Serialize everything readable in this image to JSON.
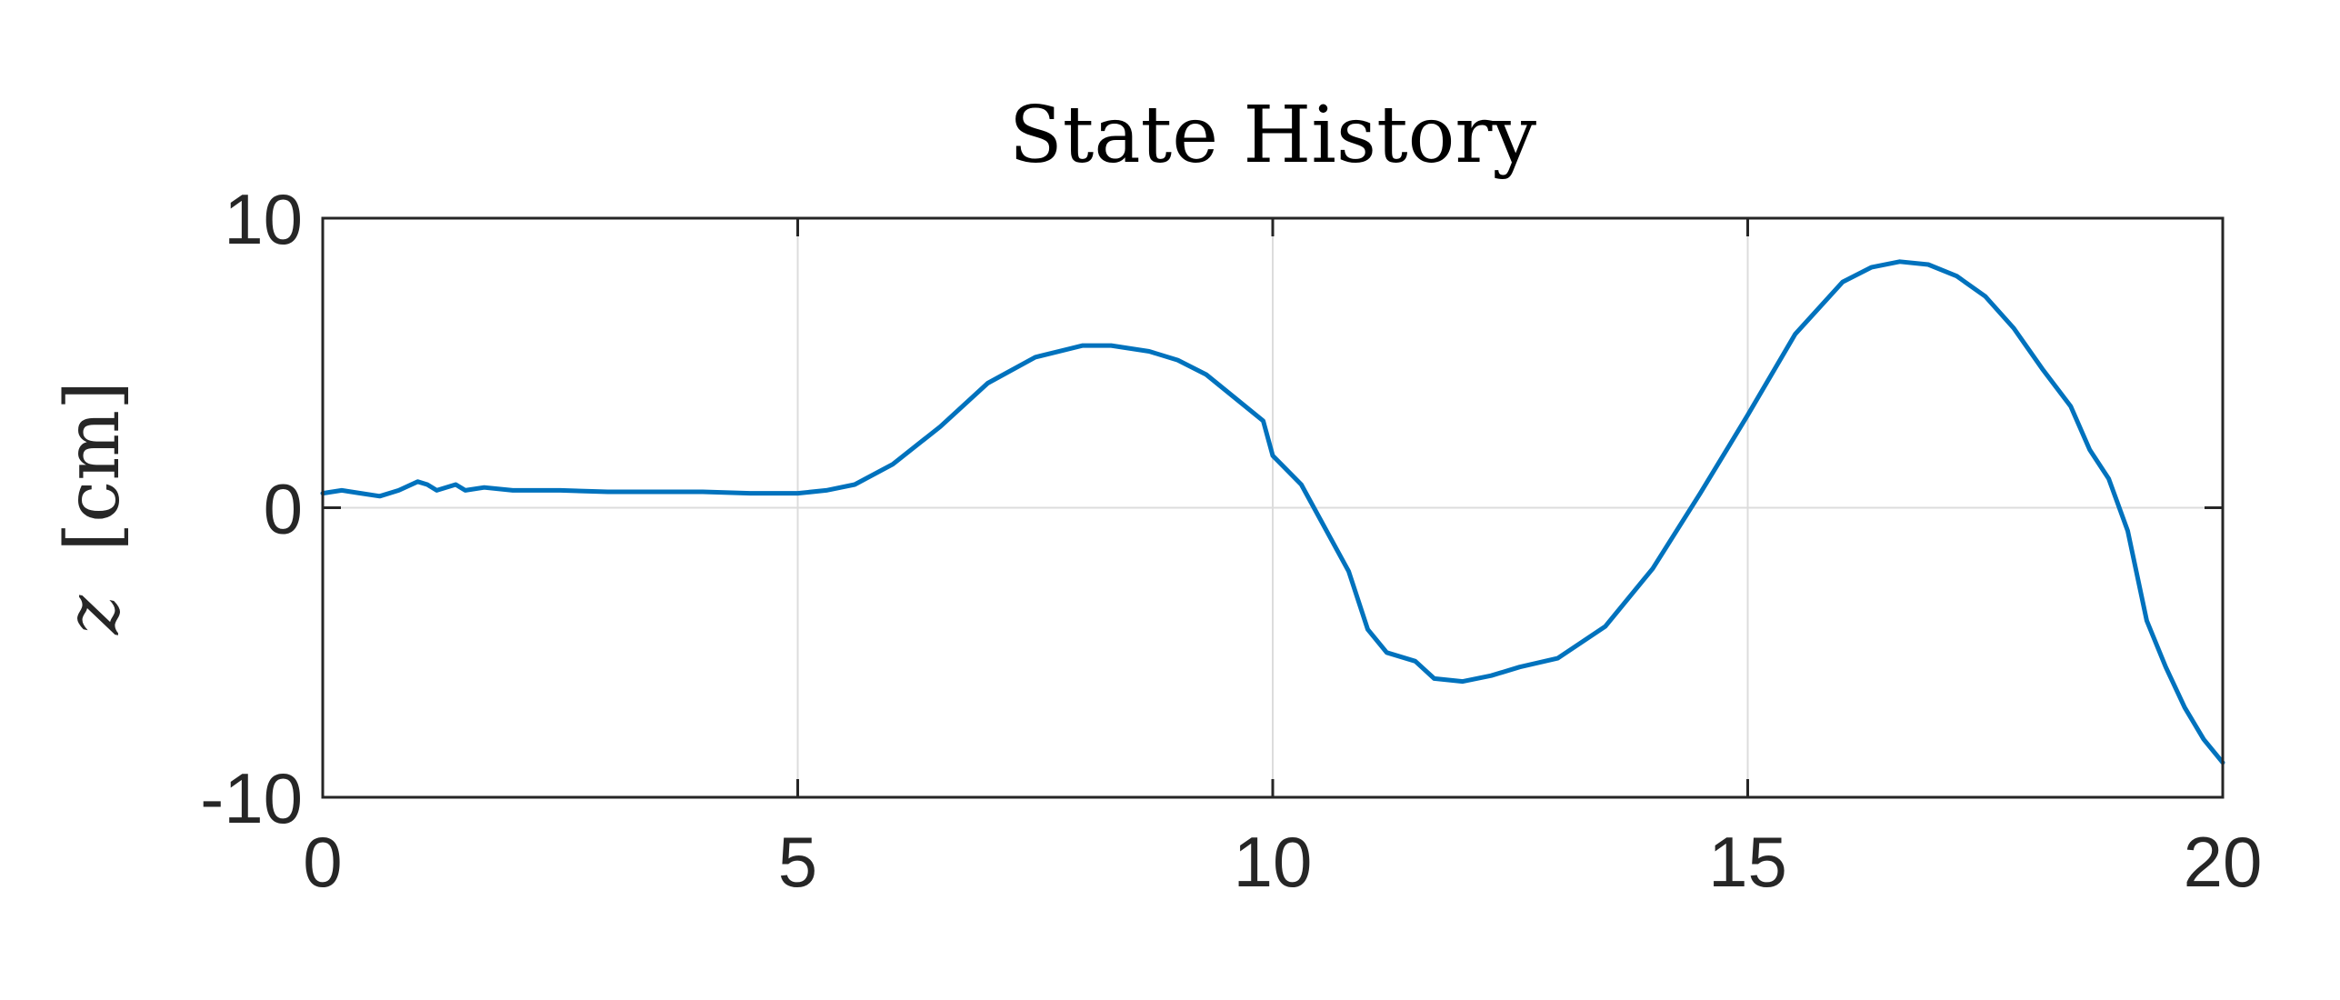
{
  "chart_data": {
    "type": "line",
    "title": "State History",
    "xlabel": "",
    "ylabel_var": "z",
    "ylabel_unit": "[cm]",
    "xlim": [
      0,
      20
    ],
    "ylim": [
      -10,
      10
    ],
    "x_ticks": [
      0,
      5,
      10,
      15,
      20
    ],
    "y_ticks": [
      -10,
      0,
      10
    ],
    "x_tick_labels": [
      "0",
      "5",
      "10",
      "15",
      "20"
    ],
    "y_tick_labels": [
      "-10",
      "0",
      "10"
    ],
    "grid": true,
    "line_color": "#0072BD",
    "series": [
      {
        "x": [
          0,
          0.2,
          0.4,
          0.6,
          0.8,
          1.0,
          1.1,
          1.2,
          1.4,
          1.5,
          1.7,
          2.0,
          2.5,
          3.0,
          3.5,
          4.0,
          4.5,
          5.0,
          5.3,
          5.6,
          6.0,
          6.5,
          7.0,
          7.5,
          8.0,
          8.3,
          8.7,
          9.0,
          9.3,
          9.6,
          9.9,
          10.0,
          10.3,
          10.6,
          10.8,
          11.0,
          11.2,
          11.5,
          11.7,
          12.0,
          12.3,
          12.6,
          13.0,
          13.5,
          14.0,
          14.5,
          15.0,
          15.5,
          16.0,
          16.3,
          16.6,
          16.9,
          17.2,
          17.5,
          17.8,
          18.1,
          18.4,
          18.6,
          18.8,
          19.0,
          19.2,
          19.4,
          19.6,
          19.8,
          20.0
        ],
        "y": [
          0.5,
          0.6,
          0.5,
          0.4,
          0.6,
          0.9,
          0.8,
          0.6,
          0.8,
          0.6,
          0.7,
          0.6,
          0.6,
          0.55,
          0.55,
          0.55,
          0.5,
          0.5,
          0.6,
          0.8,
          1.5,
          2.8,
          4.3,
          5.2,
          5.6,
          5.6,
          5.4,
          5.1,
          4.6,
          3.8,
          3.0,
          1.8,
          0.8,
          -1.0,
          -2.2,
          -4.2,
          -5.0,
          -5.3,
          -5.9,
          -6.0,
          -5.8,
          -5.5,
          -5.2,
          -4.1,
          -2.1,
          0.5,
          3.2,
          6.0,
          7.8,
          8.3,
          8.5,
          8.4,
          8.0,
          7.3,
          6.2,
          4.8,
          3.5,
          2.0,
          1.0,
          -0.8,
          -3.9,
          -5.5,
          -6.9,
          -8.0,
          -8.8
        ]
      }
    ]
  }
}
